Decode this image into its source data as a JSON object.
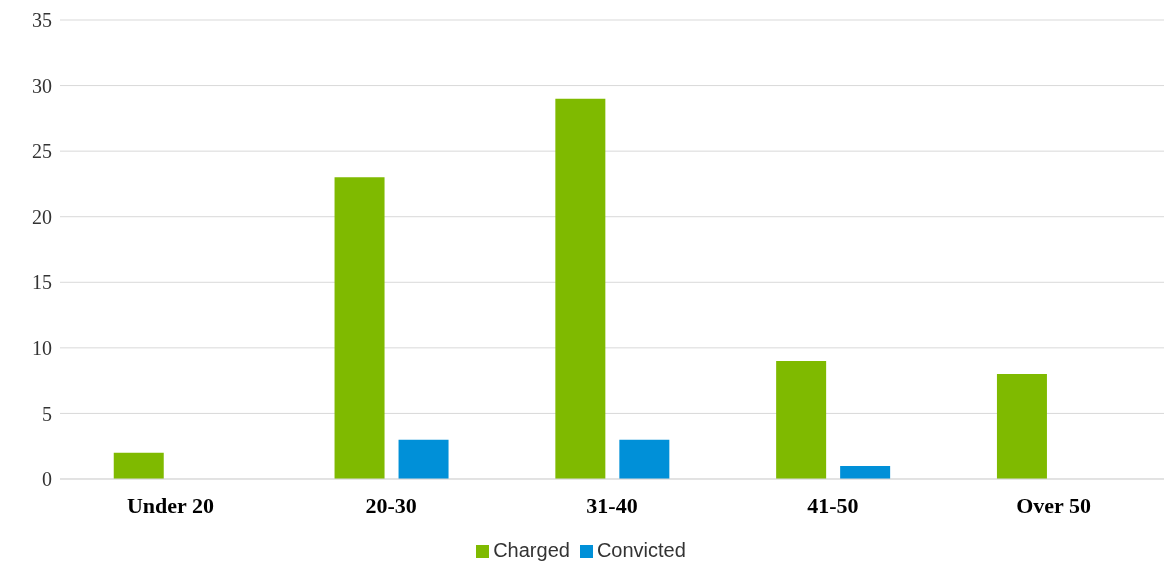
{
  "chart_data": {
    "type": "bar",
    "categories": [
      "Under 20",
      "20-30",
      "31-40",
      "41-50",
      "Over 50"
    ],
    "series": [
      {
        "name": "Charged",
        "color": "#7fba00",
        "values": [
          2,
          23,
          29,
          9,
          8
        ]
      },
      {
        "name": "Convicted",
        "color": "#0090d8",
        "values": [
          0,
          3,
          3,
          1,
          0
        ]
      }
    ],
    "ylim": [
      0,
      35
    ],
    "yticks": [
      0,
      5,
      10,
      15,
      20,
      25,
      30,
      35
    ],
    "grid": "y",
    "legend": "bottom"
  }
}
